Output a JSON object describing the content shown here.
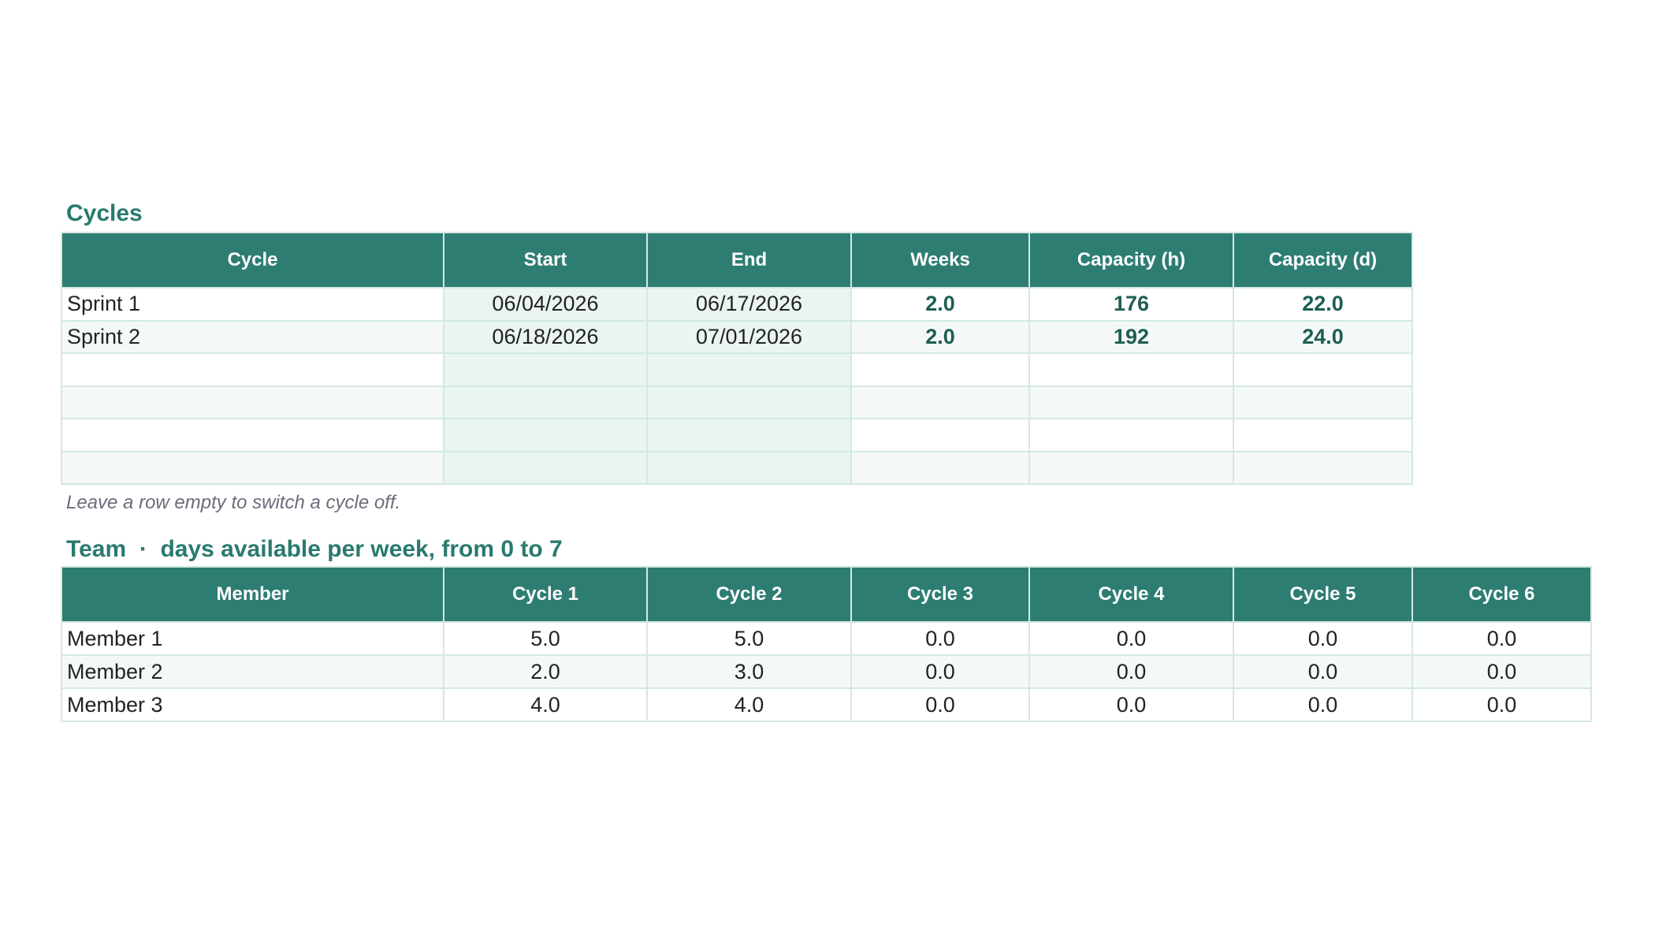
{
  "cycles": {
    "title": "Cycles",
    "columns": [
      "Cycle",
      "Start",
      "End",
      "Weeks",
      "Capacity (h)",
      "Capacity (d)"
    ],
    "rows": [
      [
        "Sprint 1",
        "06/04/2026",
        "06/17/2026",
        "2.0",
        "176",
        "22.0"
      ],
      [
        "Sprint 2",
        "06/18/2026",
        "07/01/2026",
        "2.0",
        "192",
        "24.0"
      ]
    ]
  },
  "note": "Leave a row empty to switch a cycle off.",
  "team": {
    "title": "Team  ·  days available per week, from 0 to 7",
    "columns": [
      "Member",
      "Cycle 1",
      "Cycle 2",
      "Cycle 3",
      "Cycle 4",
      "Cycle 5",
      "Cycle 6"
    ],
    "rows": [
      [
        "Member 1",
        "5.0",
        "5.0",
        "0.0",
        "0.0",
        "0.0",
        "0.0"
      ],
      [
        "Member 2",
        "2.0",
        "3.0",
        "0.0",
        "0.0",
        "0.0",
        "0.0"
      ],
      [
        "Member 3",
        "4.0",
        "4.0",
        "0.0",
        "0.0",
        "0.0",
        "0.0"
      ]
    ]
  }
}
